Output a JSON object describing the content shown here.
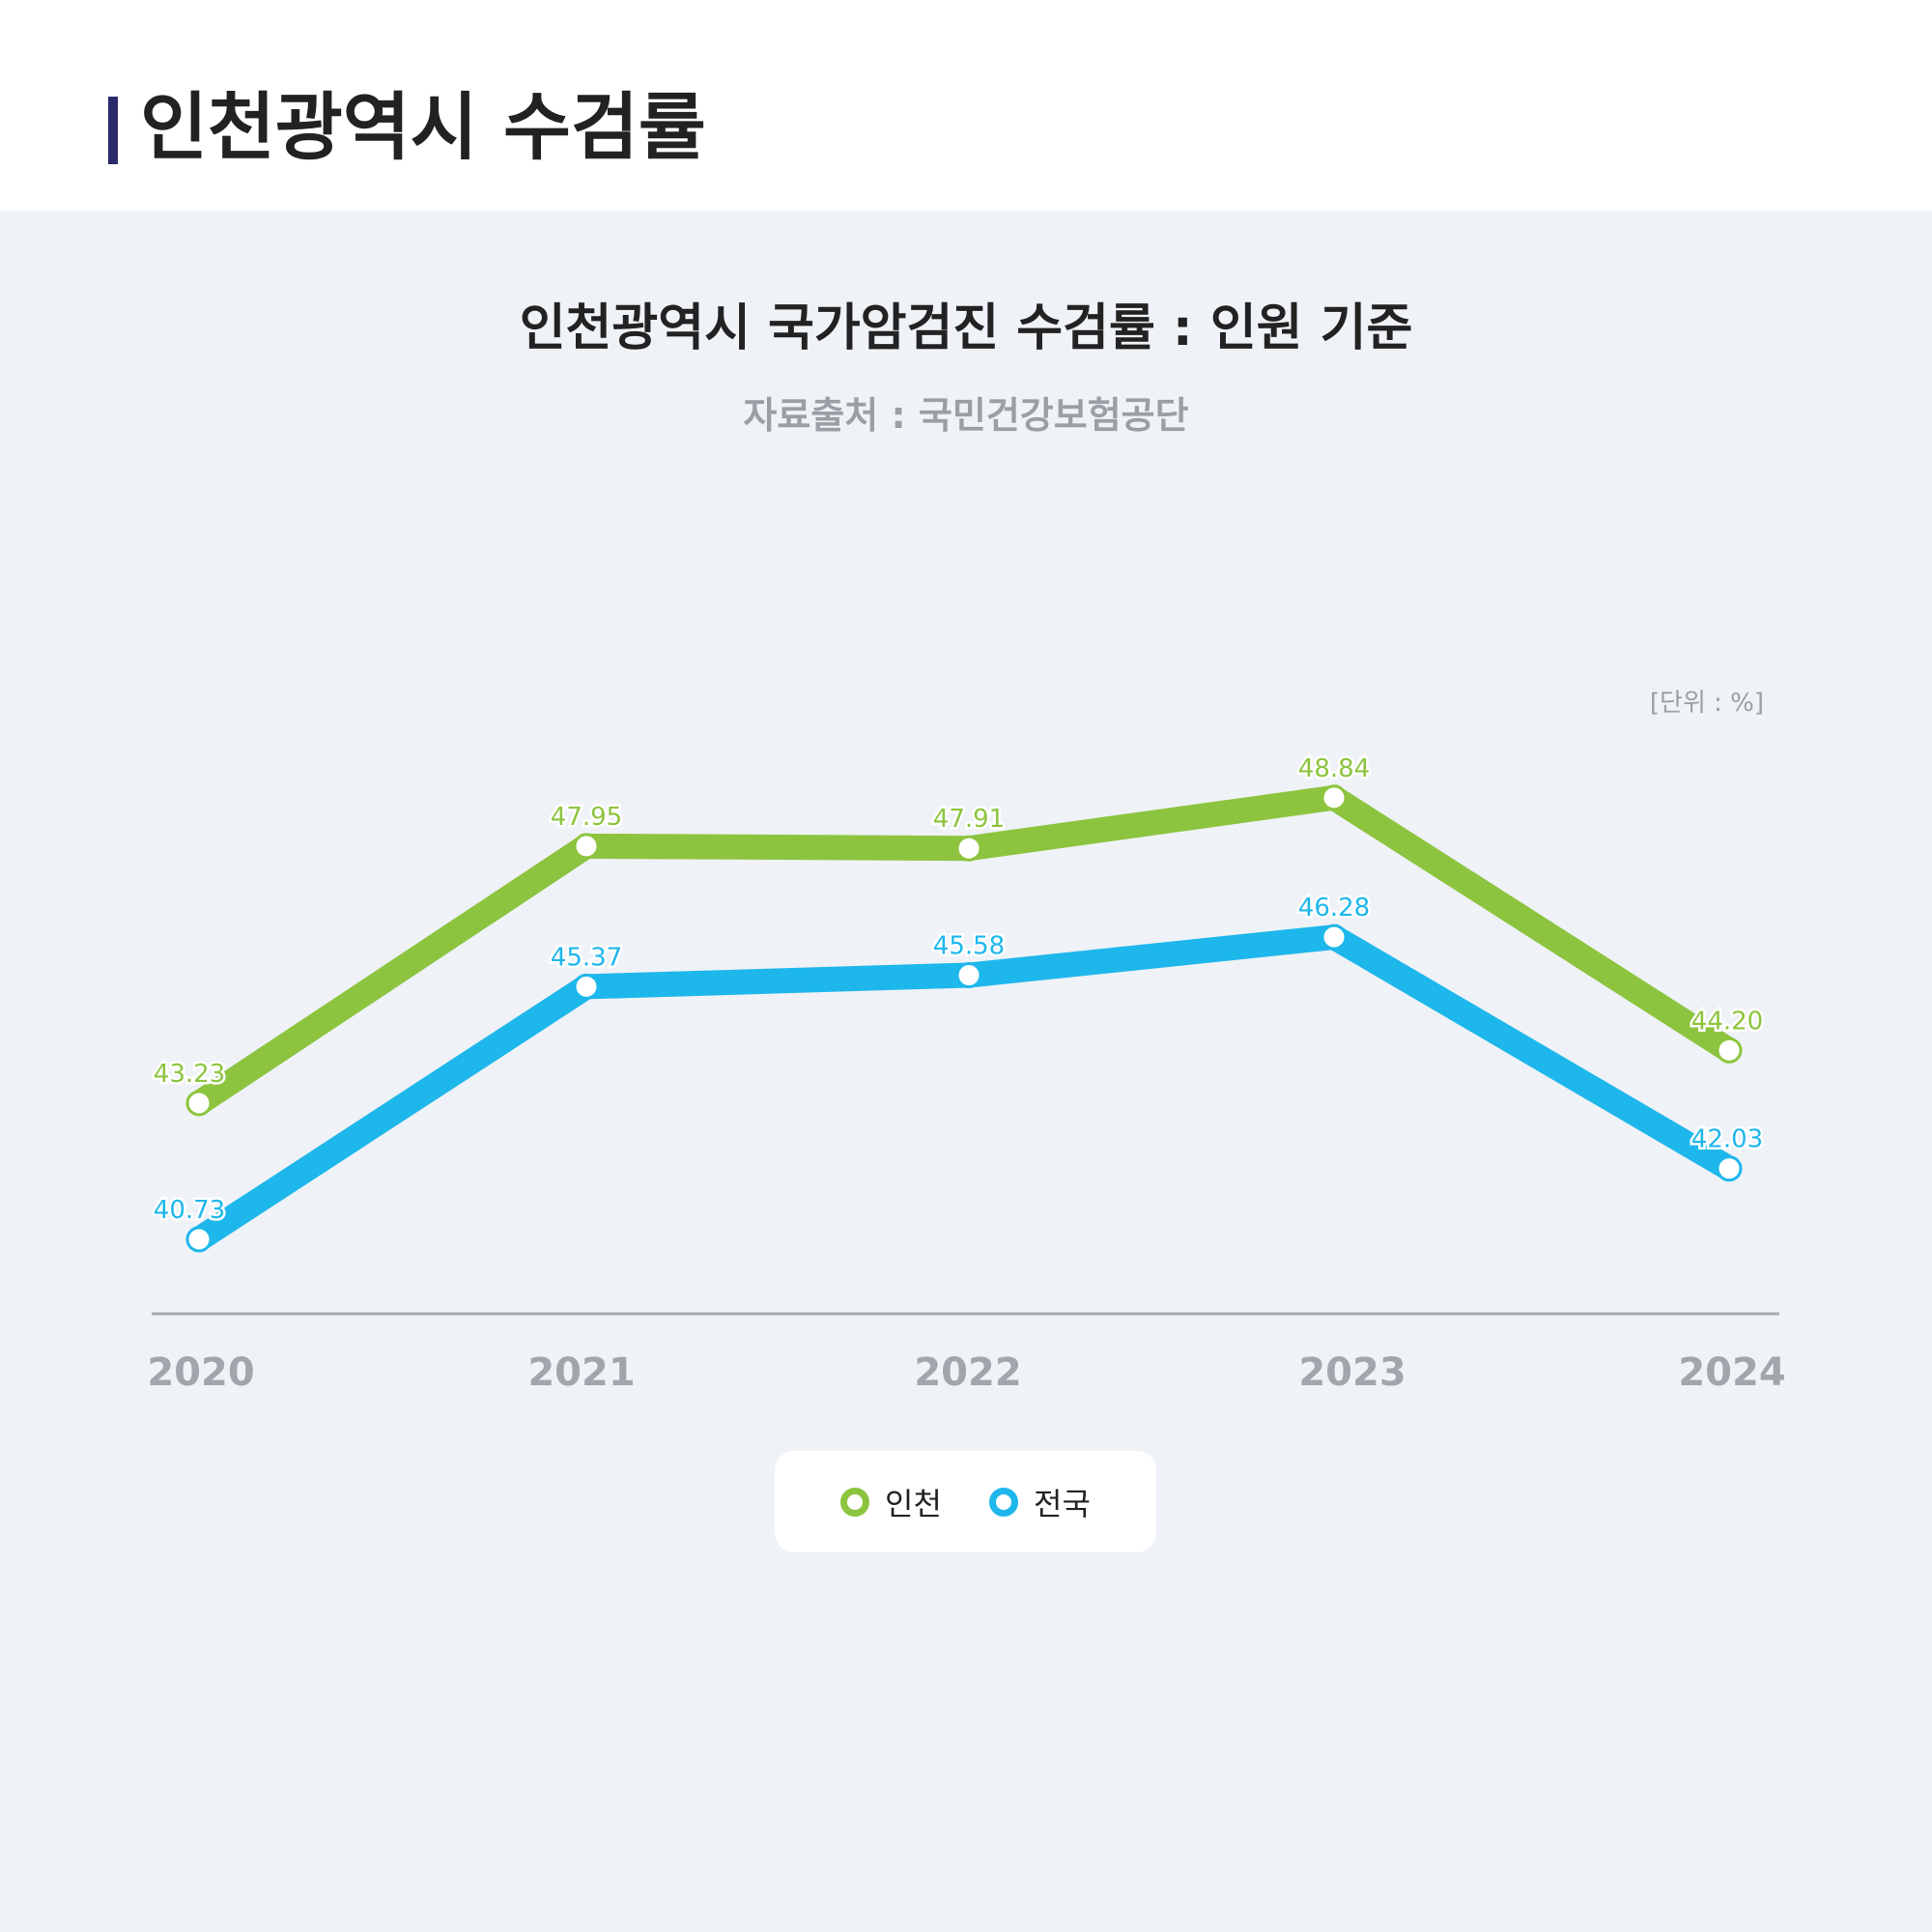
{
  "header": {
    "title": "인천광역시 수검률"
  },
  "chart": {
    "title": "인천광역시 국가암검진 수검률 : 인원 기준",
    "subtitle": "자료출처 : 국민건강보험공단",
    "unit": "[단위 : %]"
  },
  "colors": {
    "incheon": "#8dc43f",
    "national": "#1eb7eb",
    "axis": "#a9abb0",
    "accent_bar": "#2b2a6b"
  },
  "legend": {
    "items": [
      {
        "label": "인천",
        "color": "#8dc43f"
      },
      {
        "label": "전국",
        "color": "#1eb7eb"
      }
    ]
  },
  "chart_data": {
    "type": "line",
    "title": "인천광역시 국가암검진 수검률 : 인원 기준",
    "subtitle": "자료출처 : 국민건강보험공단",
    "unit": "[단위 : %]",
    "categories": [
      "2020",
      "2021",
      "2022",
      "2023",
      "2024"
    ],
    "series": [
      {
        "name": "인천",
        "values": [
          43.23,
          47.95,
          47.91,
          48.84,
          44.2
        ],
        "labels": [
          "43.23",
          "47.95",
          "47.91",
          "48.84",
          "44.20"
        ],
        "color": "#8dc43f"
      },
      {
        "name": "전국",
        "values": [
          40.73,
          45.37,
          45.58,
          46.28,
          42.03
        ],
        "labels": [
          "40.73",
          "45.37",
          "45.58",
          "46.28",
          "42.03"
        ],
        "color": "#1eb7eb"
      }
    ],
    "grid": false,
    "legend_position": "bottom"
  }
}
